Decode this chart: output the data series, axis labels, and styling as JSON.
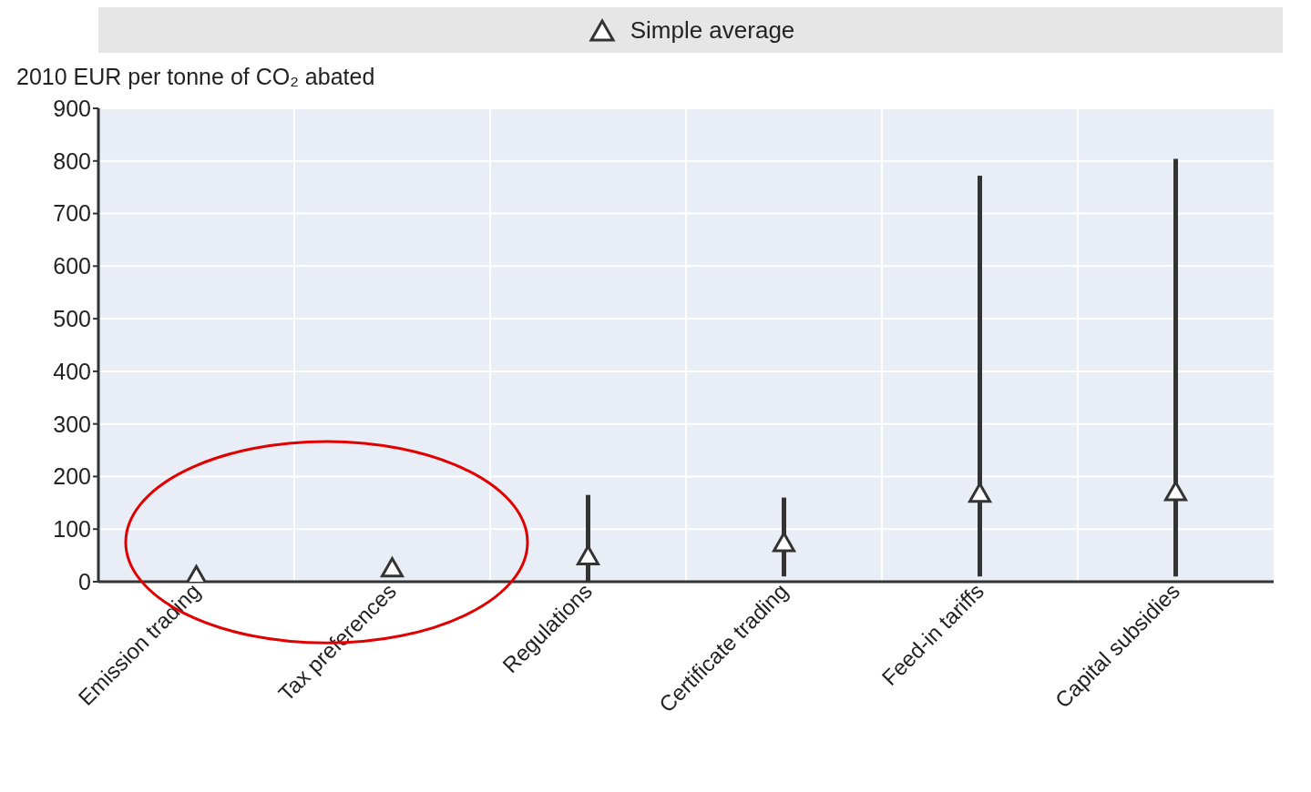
{
  "chart_data": {
    "type": "scatter",
    "ylabel": "2010 EUR per tonne of CO₂ abated",
    "categories": [
      "Emission trading",
      "Tax preferences",
      "Regulations",
      "Certificate trading",
      "Feed-in tariffs",
      "Capital subsidies"
    ],
    "series": [
      {
        "name": "Simple average",
        "color": "#333333",
        "values": [
          10,
          25,
          48,
          73,
          167,
          170
        ],
        "errors": [
          null,
          null,
          [
            0,
            165
          ],
          [
            10,
            160
          ],
          [
            10,
            772
          ],
          [
            10,
            804
          ]
        ]
      }
    ],
    "ylim": [
      0,
      900
    ],
    "yticks": [
      0,
      100,
      200,
      300,
      400,
      500,
      600,
      700,
      800,
      900
    ],
    "grid": true,
    "legend": "top",
    "marker": "triangle"
  }
}
